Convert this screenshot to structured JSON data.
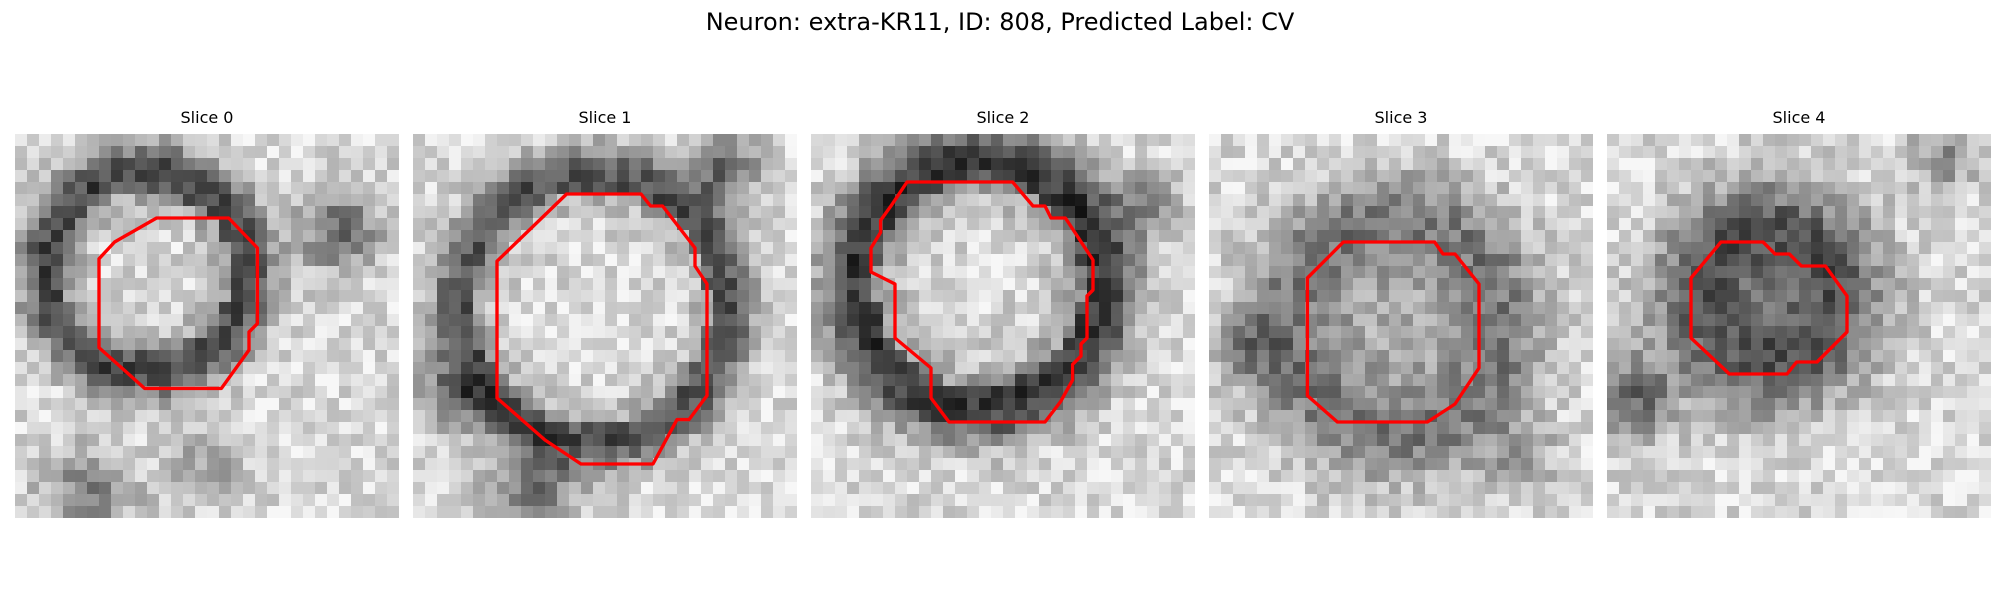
{
  "figure": {
    "title": "Neuron: extra-KR11, ID: 808, Predicted Label: CV"
  },
  "panels": [
    {
      "title": "Slice 0"
    },
    {
      "title": "Slice 1"
    },
    {
      "title": "Slice 2"
    },
    {
      "title": "Slice 3"
    },
    {
      "title": "Slice 4"
    }
  ],
  "colors": {
    "contour": "#ff0000",
    "background": "#ffffff"
  },
  "colormap": "grayscale",
  "grid_size": 32
}
